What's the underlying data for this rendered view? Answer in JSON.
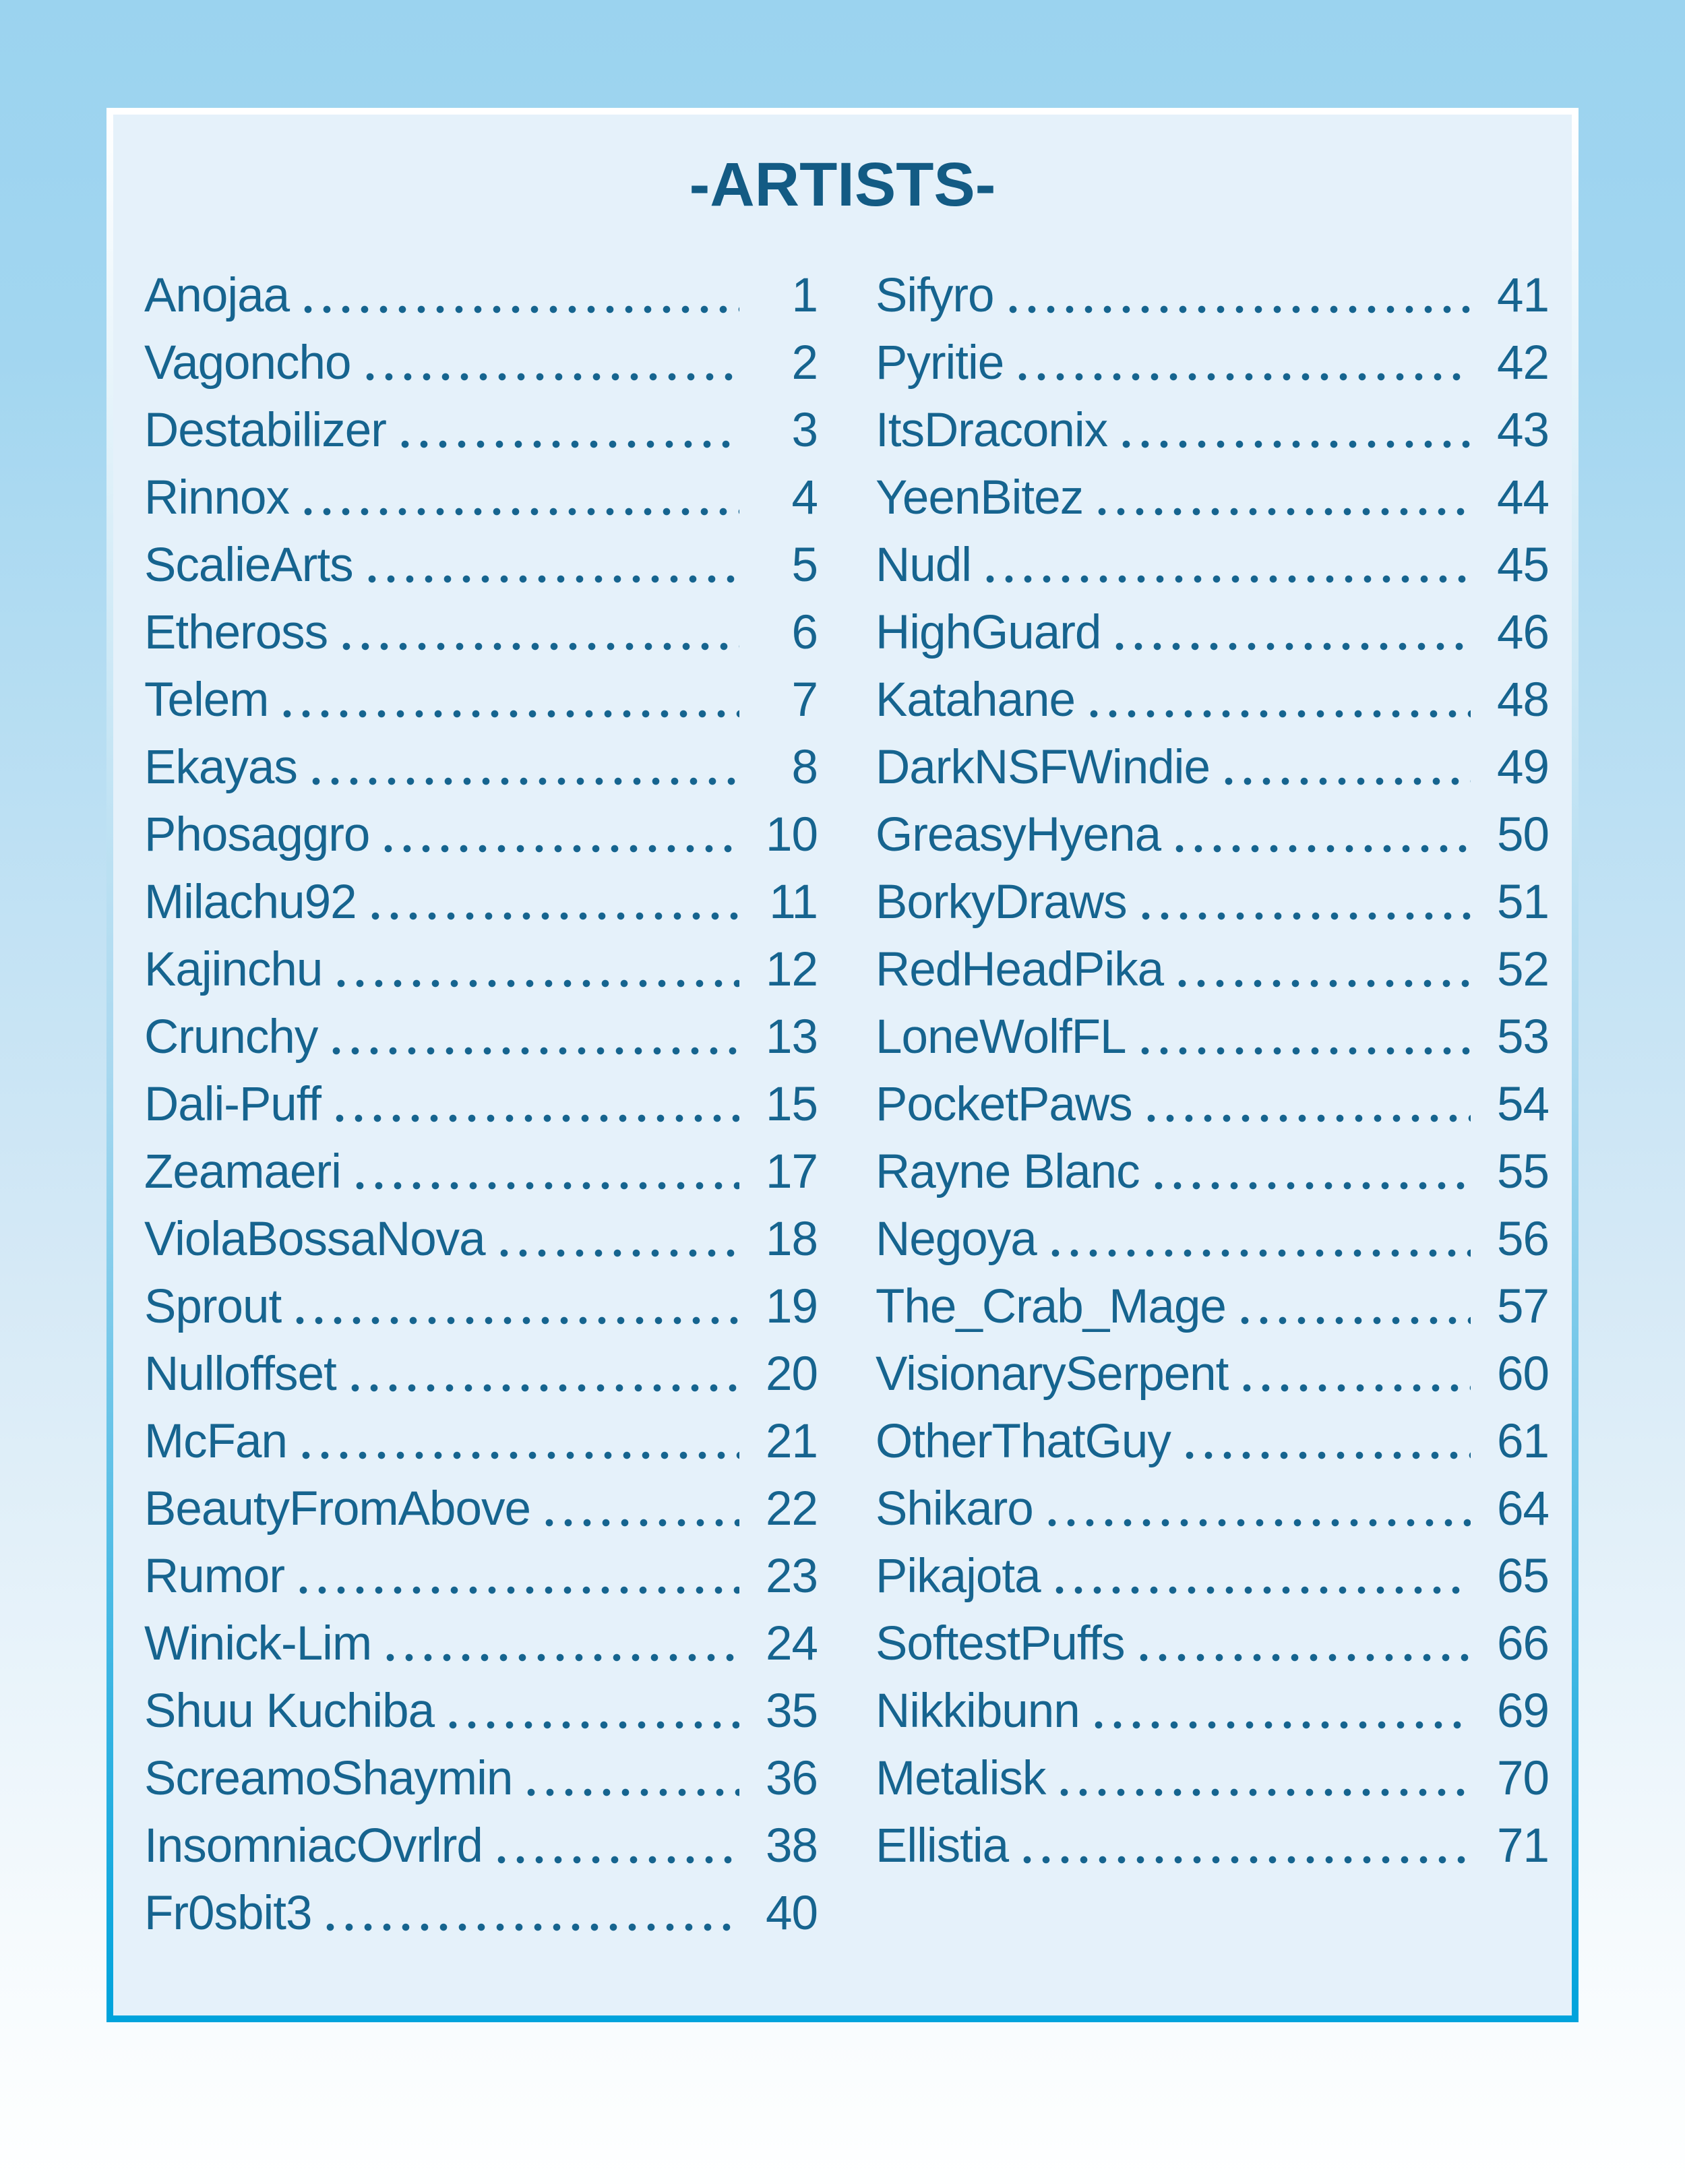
{
  "title": "-ARTISTS-",
  "colors": {
    "page_bg_top": "#9BD3EF",
    "page_bg_bottom": "#FEFFFF",
    "panel_bg": "#E5F1FA",
    "border_top": "#FFFFFF",
    "border_mid": "#A9D8EF",
    "accent_border": "#00A3DC",
    "text": "#16648F",
    "title": "#135B84"
  },
  "toc": {
    "columns": [
      {
        "entries": [
          {
            "name": "Anojaa",
            "page": "1"
          },
          {
            "name": "Vagoncho",
            "page": "2"
          },
          {
            "name": "Destabilizer",
            "page": "3"
          },
          {
            "name": "Rinnox",
            "page": "4"
          },
          {
            "name": "ScalieArts",
            "page": "5"
          },
          {
            "name": "Etheross",
            "page": "6"
          },
          {
            "name": "Telem",
            "page": "7"
          },
          {
            "name": "Ekayas",
            "page": "8"
          },
          {
            "name": "Phosaggro",
            "page": "10"
          },
          {
            "name": "Milachu92",
            "page": "11"
          },
          {
            "name": "Kajinchu",
            "page": "12"
          },
          {
            "name": "Crunchy",
            "page": "13"
          },
          {
            "name": "Dali-Puff",
            "page": "15"
          },
          {
            "name": "Zeamaeri",
            "page": "17"
          },
          {
            "name": "ViolaBossaNova",
            "page": "18"
          },
          {
            "name": "Sprout",
            "page": "19"
          },
          {
            "name": "Nulloffset",
            "page": "20"
          },
          {
            "name": "McFan",
            "page": "21"
          },
          {
            "name": "BeautyFromAbove",
            "page": "22"
          },
          {
            "name": "Rumor",
            "page": "23"
          },
          {
            "name": "Winick-Lim",
            "page": "24"
          },
          {
            "name": "Shuu Kuchiba",
            "page": "35"
          },
          {
            "name": "ScreamoShaymin",
            "page": "36"
          },
          {
            "name": "InsomniacOvrlrd",
            "page": "38"
          },
          {
            "name": "Fr0sbit3",
            "page": "40"
          }
        ]
      },
      {
        "entries": [
          {
            "name": "Sifyro",
            "page": "41"
          },
          {
            "name": "Pyritie",
            "page": "42"
          },
          {
            "name": "ItsDraconix",
            "page": "43"
          },
          {
            "name": "YeenBitez",
            "page": "44"
          },
          {
            "name": "Nudl",
            "page": "45"
          },
          {
            "name": "HighGuard",
            "page": "46"
          },
          {
            "name": "Katahane",
            "page": "48"
          },
          {
            "name": "DarkNSFWindie",
            "page": "49"
          },
          {
            "name": "GreasyHyena",
            "page": "50"
          },
          {
            "name": "BorkyDraws",
            "page": "51"
          },
          {
            "name": "RedHeadPika",
            "page": "52"
          },
          {
            "name": "LoneWolfFL",
            "page": "53"
          },
          {
            "name": "PocketPaws",
            "page": "54"
          },
          {
            "name": "Rayne Blanc",
            "page": "55"
          },
          {
            "name": "Negoya",
            "page": "56"
          },
          {
            "name": "The_Crab_Mage",
            "page": "57"
          },
          {
            "name": "VisionarySerpent",
            "page": "60"
          },
          {
            "name": "OtherThatGuy",
            "page": "61"
          },
          {
            "name": "Shikaro",
            "page": "64"
          },
          {
            "name": "Pikajota",
            "page": "65"
          },
          {
            "name": "SoftestPuffs",
            "page": "66"
          },
          {
            "name": "Nikkibunn",
            "page": "69"
          },
          {
            "name": "Metalisk",
            "page": "70"
          },
          {
            "name": "Ellistia",
            "page": "71"
          }
        ]
      }
    ]
  }
}
